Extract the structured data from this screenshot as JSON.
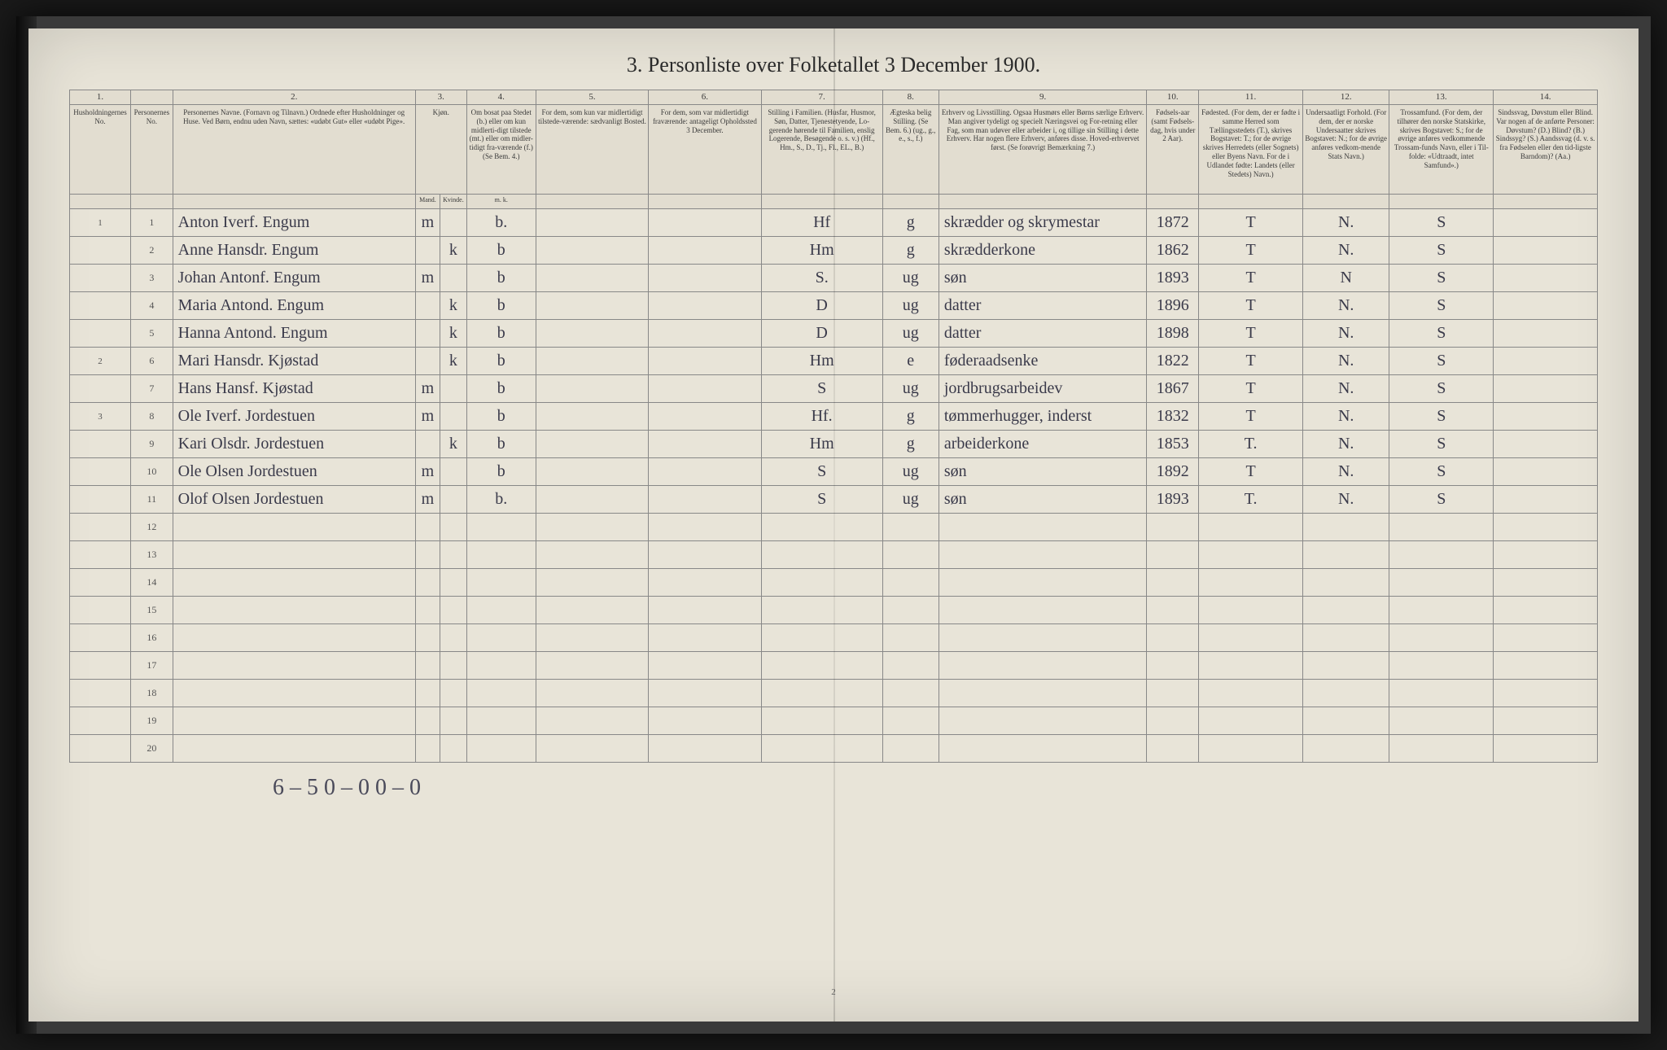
{
  "title": "3.  Personliste over Folketallet 3 December 1900.",
  "column_numbers": [
    "1.",
    "",
    "2.",
    "3.",
    "",
    "4.",
    "5.",
    "6.",
    "7.",
    "8.",
    "9.",
    "10.",
    "11.",
    "12.",
    "13.",
    "14."
  ],
  "headers": {
    "c1": "Husholdningernes No.",
    "c1b": "Personernes No.",
    "c2": "Personernes Navne.\n(Fornavn og Tilnavn.)\nOrdnede efter Husholdninger og Huse.\nVed Børn, endnu uden Navn, sættes: «udøbt Gut» eller «udøbt Pige».",
    "c3": "Kjøn.",
    "c3a": "Mand.",
    "c3b": "Kvinde.",
    "c4": "Om bosat paa Stedet (b.) eller om kun midlerti-digt tilstede (mt.) eller om midler-tidigt fra-værende (f.)\n(Se Bem. 4.)",
    "c5": "For dem, som kun var midlertidigt tilstede-værende:\nsædvanligt Bosted.",
    "c6": "For dem, som var midlertidigt fraværende:\nantageligt Opholdssted 3 December.",
    "c7": "Stilling i Familien.\n(Husfar, Husmor, Søn, Datter, Tjenestetyende, Lo-gerende hørende til Familien, enslig Logerende, Besøgende o. s. v.)\n(Hf., Hm., S., D., Tj., Fl., EL., B.)",
    "c8": "Ægteska belig Stilling.\n(Se Bem. 6.)\n(ug., g., e., s., f.)",
    "c9": "Erhverv og Livsstilling.\nOgsaa Husmørs eller Børns særlige Erhverv.\nMan angiver tydeligt og specielt Næringsvei og For-retning eller Fag, som man udøver eller arbeider i, og tillige sin Stilling i dette Erhverv.\nHar nogen flere Erhverv, anføres disse. Hoved-erhvervet først.\n(Se forøvrigt Bemærkning 7.)",
    "c10": "Fødsels-aar\n(samt Fødsels-dag, hvis under 2 Aar).",
    "c11": "Fødested.\n(For dem, der er fødte i samme Herred som Tællingsstedets (T.), skrives Bogstavet: T.; for de øvrige skrives Herredets (eller Sognets) eller Byens Navn.\nFor de i Udlandet fødte: Landets (eller Stedets) Navn.)",
    "c12": "Undersaatligt Forhold.\n(For dem, der er norske Undersaatter skrives Bogstavet: N.; for de øvrige anføres vedkom-mende Stats Navn.)",
    "c13": "Trossamfund.\n(For dem, der tilhører den norske Statskirke, skrives Bogstavet: S.; for de øvrige anføres vedkommende Trossam-funds Navn, eller i Til-folde: «Udtraadt, intet Samfund».)",
    "c14": "Sindssvag, Døvstum eller Blind.\nVar nogen af de anførte Personer:\nDøvstum? (D.)\nBlind? (B.)\nSindssyg? (S.)\nAandssvag (d. v. s. fra Fødselen eller den tid-ligste Barndom)? (Aa.)"
  },
  "rows": [
    {
      "hh": "1",
      "pn": "1",
      "name": "Anton Iverf. Engum",
      "sex_m": "m",
      "sex_k": "",
      "c4": "b.",
      "c5": "",
      "c6": "",
      "c7": "Hf",
      "c8": "g",
      "c9": "skrædder og skrymestar",
      "c10": "1872",
      "c11": "T",
      "c12": "N.",
      "c13": "S",
      "c14": ""
    },
    {
      "hh": "",
      "pn": "2",
      "name": "Anne Hansdr. Engum",
      "sex_m": "",
      "sex_k": "k",
      "c4": "b",
      "c5": "",
      "c6": "",
      "c7": "Hm",
      "c8": "g",
      "c9": "skrædderkone",
      "c10": "1862",
      "c11": "T",
      "c12": "N.",
      "c13": "S",
      "c14": ""
    },
    {
      "hh": "",
      "pn": "3",
      "name": "Johan Antonf. Engum",
      "sex_m": "m",
      "sex_k": "",
      "c4": "b",
      "c5": "",
      "c6": "",
      "c7": "S.",
      "c8": "ug",
      "c9": "søn",
      "c10": "1893",
      "c11": "T",
      "c12": "N",
      "c13": "S",
      "c14": ""
    },
    {
      "hh": "",
      "pn": "4",
      "name": "Maria Antond. Engum",
      "sex_m": "",
      "sex_k": "k",
      "c4": "b",
      "c5": "",
      "c6": "",
      "c7": "D",
      "c8": "ug",
      "c9": "datter",
      "c10": "1896",
      "c11": "T",
      "c12": "N.",
      "c13": "S",
      "c14": ""
    },
    {
      "hh": "",
      "pn": "5",
      "name": "Hanna Antond. Engum",
      "sex_m": "",
      "sex_k": "k",
      "c4": "b",
      "c5": "",
      "c6": "",
      "c7": "D",
      "c8": "ug",
      "c9": "datter",
      "c10": "1898",
      "c11": "T",
      "c12": "N.",
      "c13": "S",
      "c14": ""
    },
    {
      "hh": "2",
      "pn": "6",
      "name": "Mari Hansdr. Kjøstad",
      "sex_m": "",
      "sex_k": "k",
      "c4": "b",
      "c5": "",
      "c6": "",
      "c7": "Hm",
      "c8": "e",
      "c9": "føderaadsenke",
      "c10": "1822",
      "c11": "T",
      "c12": "N.",
      "c13": "S",
      "c14": ""
    },
    {
      "hh": "",
      "pn": "7",
      "name": "Hans Hansf. Kjøstad",
      "sex_m": "m",
      "sex_k": "",
      "c4": "b",
      "c5": "",
      "c6": "",
      "c7": "S",
      "c8": "ug",
      "c9": "jordbrugsarbeidev",
      "c10": "1867",
      "c11": "T",
      "c12": "N.",
      "c13": "S",
      "c14": ""
    },
    {
      "hh": "3",
      "pn": "8",
      "name": "Ole Iverf. Jordestuen",
      "sex_m": "m",
      "sex_k": "",
      "c4": "b",
      "c5": "",
      "c6": "",
      "c7": "Hf.",
      "c8": "g",
      "c9": "tømmerhugger, inderst",
      "c10": "1832",
      "c11": "T",
      "c12": "N.",
      "c13": "S",
      "c14": ""
    },
    {
      "hh": "",
      "pn": "9",
      "name": "Kari Olsdr. Jordestuen",
      "sex_m": "",
      "sex_k": "k",
      "c4": "b",
      "c5": "",
      "c6": "",
      "c7": "Hm",
      "c8": "g",
      "c9": "arbeiderkone",
      "c10": "1853",
      "c11": "T.",
      "c12": "N.",
      "c13": "S",
      "c14": ""
    },
    {
      "hh": "",
      "pn": "10",
      "name": "Ole Olsen Jordestuen",
      "sex_m": "m",
      "sex_k": "",
      "c4": "b",
      "c5": "",
      "c6": "",
      "c7": "S",
      "c8": "ug",
      "c9": "søn",
      "c10": "1892",
      "c11": "T",
      "c12": "N.",
      "c13": "S",
      "c14": ""
    },
    {
      "hh": "",
      "pn": "11",
      "name": "Olof Olsen Jordestuen",
      "sex_m": "m",
      "sex_k": "",
      "c4": "b.",
      "c5": "",
      "c6": "",
      "c7": "S",
      "c8": "ug",
      "c9": "søn",
      "c10": "1893",
      "c11": "T.",
      "c12": "N.",
      "c13": "S",
      "c14": ""
    }
  ],
  "empty_row_labels": [
    "12",
    "13",
    "14",
    "15",
    "16",
    "17",
    "18",
    "19",
    "20"
  ],
  "bottom_note": "6 – 5   0 – 0   0 – 0",
  "page_number": "2",
  "colors": {
    "paper": "#e8e4d8",
    "border": "#888888",
    "ink_print": "#3a3a3a",
    "ink_hand": "#3a3a4a",
    "background": "#1a1a1a"
  }
}
